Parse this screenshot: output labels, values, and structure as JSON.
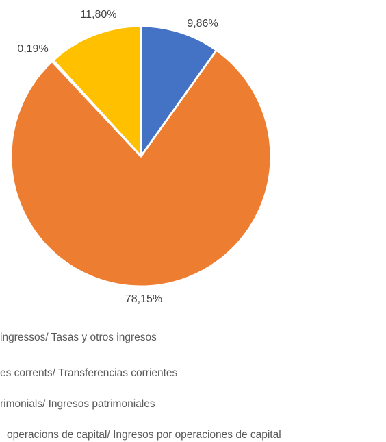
{
  "chart_data": {
    "type": "pie",
    "categories": [
      "ingressos/ Tasas y otros ingresos",
      "es corrents/ Transferencias corrientes",
      "rimonials/ Ingresos patrimoniales",
      "operacions de capital/ Ingresos por operaciones de capital"
    ],
    "values": [
      9.86,
      78.15,
      0.19,
      11.8
    ],
    "value_labels": [
      "9,86%",
      "78,15%",
      "0,19%",
      "11,80%"
    ],
    "colors": [
      "#4472c4",
      "#ed7d31",
      "#a5a5a5",
      "#ffc000"
    ]
  }
}
